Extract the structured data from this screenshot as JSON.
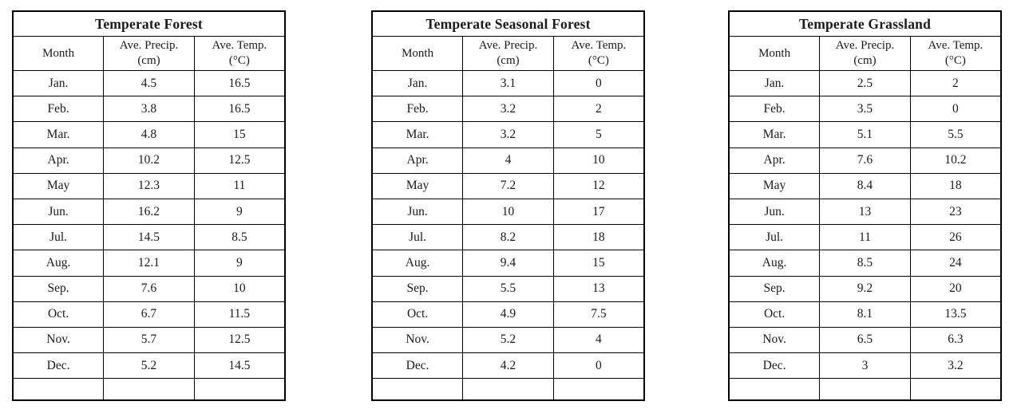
{
  "page": {
    "background_color": "#ffffff",
    "border_color": "#000000",
    "text_color": "#1a1a1a"
  },
  "column_headers": {
    "month": "Month",
    "precip_line1": "Ave. Precip.",
    "precip_line2": "(cm)",
    "temp_line1": "Ave. Temp.",
    "temp_line2": "(°C)"
  },
  "tables": [
    {
      "title": "Temperate Forest",
      "rows": [
        {
          "month": "Jan.",
          "precip": "4.5",
          "temp": "16.5"
        },
        {
          "month": "Feb.",
          "precip": "3.8",
          "temp": "16.5"
        },
        {
          "month": "Mar.",
          "precip": "4.8",
          "temp": "15"
        },
        {
          "month": "Apr.",
          "precip": "10.2",
          "temp": "12.5"
        },
        {
          "month": "May",
          "precip": "12.3",
          "temp": "11"
        },
        {
          "month": "Jun.",
          "precip": "16.2",
          "temp": "9"
        },
        {
          "month": "Jul.",
          "precip": "14.5",
          "temp": "8.5"
        },
        {
          "month": "Aug.",
          "precip": "12.1",
          "temp": "9"
        },
        {
          "month": "Sep.",
          "precip": "7.6",
          "temp": "10"
        },
        {
          "month": "Oct.",
          "precip": "6.7",
          "temp": "11.5"
        },
        {
          "month": "Nov.",
          "precip": "5.7",
          "temp": "12.5"
        },
        {
          "month": "Dec.",
          "precip": "5.2",
          "temp": "14.5"
        }
      ]
    },
    {
      "title": "Temperate Seasonal Forest",
      "rows": [
        {
          "month": "Jan.",
          "precip": "3.1",
          "temp": "0"
        },
        {
          "month": "Feb.",
          "precip": "3.2",
          "temp": "2"
        },
        {
          "month": "Mar.",
          "precip": "3.2",
          "temp": "5"
        },
        {
          "month": "Apr.",
          "precip": "4",
          "temp": "10"
        },
        {
          "month": "May",
          "precip": "7.2",
          "temp": "12"
        },
        {
          "month": "Jun.",
          "precip": "10",
          "temp": "17"
        },
        {
          "month": "Jul.",
          "precip": "8.2",
          "temp": "18"
        },
        {
          "month": "Aug.",
          "precip": "9.4",
          "temp": "15"
        },
        {
          "month": "Sep.",
          "precip": "5.5",
          "temp": "13"
        },
        {
          "month": "Oct.",
          "precip": "4.9",
          "temp": "7.5"
        },
        {
          "month": "Nov.",
          "precip": "5.2",
          "temp": "4"
        },
        {
          "month": "Dec.",
          "precip": "4.2",
          "temp": "0"
        }
      ]
    },
    {
      "title": "Temperate Grassland",
      "rows": [
        {
          "month": "Jan.",
          "precip": "2.5",
          "temp": "2"
        },
        {
          "month": "Feb.",
          "precip": "3.5",
          "temp": "0"
        },
        {
          "month": "Mar.",
          "precip": "5.1",
          "temp": "5.5"
        },
        {
          "month": "Apr.",
          "precip": "7.6",
          "temp": "10.2"
        },
        {
          "month": "May",
          "precip": "8.4",
          "temp": "18"
        },
        {
          "month": "Jun.",
          "precip": "13",
          "temp": "23"
        },
        {
          "month": "Jul.",
          "precip": "11",
          "temp": "26"
        },
        {
          "month": "Aug.",
          "precip": "8.5",
          "temp": "24"
        },
        {
          "month": "Sep.",
          "precip": "9.2",
          "temp": "20"
        },
        {
          "month": "Oct.",
          "precip": "8.1",
          "temp": "13.5"
        },
        {
          "month": "Nov.",
          "precip": "6.5",
          "temp": "6.3"
        },
        {
          "month": "Dec.",
          "precip": "3",
          "temp": "3.2"
        }
      ]
    }
  ]
}
